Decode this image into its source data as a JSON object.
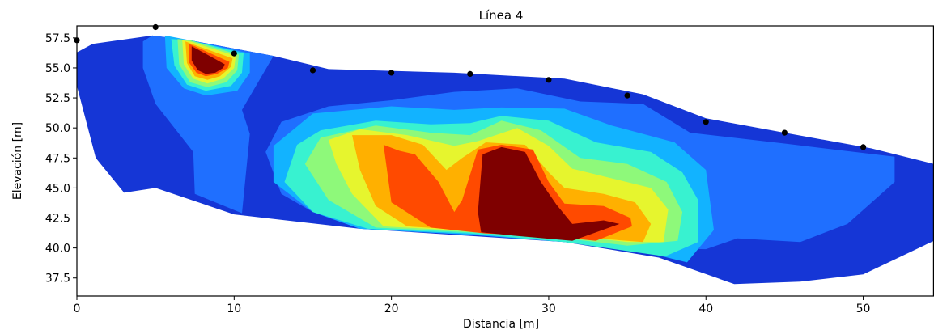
{
  "chart_data": {
    "type": "contour",
    "title": "Línea 4",
    "xlabel": "Distancia [m]",
    "ylabel": "Elevación [m]",
    "xlim": [
      0,
      54.5
    ],
    "ylim": [
      36,
      58.5
    ],
    "xticks": [
      0,
      10,
      20,
      30,
      40,
      50
    ],
    "yticks": [
      37.5,
      40.0,
      42.5,
      45.0,
      47.5,
      50.0,
      52.5,
      55.0,
      57.5
    ],
    "ytick_labels": [
      "37.5",
      "40.0",
      "42.5",
      "45.0",
      "47.5",
      "50.0",
      "52.5",
      "55.0",
      "57.5"
    ],
    "grid": false,
    "colormap": "jet",
    "colors": {
      "level0": "#00008b",
      "level1": "#1536d6",
      "level2": "#1f6fff",
      "level3": "#12b3ff",
      "level4": "#38f2d0",
      "level5": "#8ef97a",
      "level6": "#e6f52e",
      "level7": "#ffb000",
      "level8": "#ff4a00",
      "level9": "#7f0000"
    },
    "electrodes": [
      {
        "x": 0,
        "y": 57.3
      },
      {
        "x": 5,
        "y": 58.4
      },
      {
        "x": 10,
        "y": 56.2
      },
      {
        "x": 15,
        "y": 54.8
      },
      {
        "x": 20,
        "y": 54.6
      },
      {
        "x": 25,
        "y": 54.5
      },
      {
        "x": 30,
        "y": 54.0
      },
      {
        "x": 35,
        "y": 52.7
      },
      {
        "x": 40,
        "y": 50.5
      },
      {
        "x": 45,
        "y": 49.6
      },
      {
        "x": 50,
        "y": 48.4
      }
    ],
    "regions": [
      {
        "level": 1,
        "points": [
          [
            0,
            56.3
          ],
          [
            1,
            57
          ],
          [
            4.8,
            57.7
          ],
          [
            7.2,
            57.3
          ],
          [
            12.5,
            56
          ],
          [
            16,
            54.9
          ],
          [
            24,
            54.6
          ],
          [
            31,
            54.1
          ],
          [
            36,
            52.8
          ],
          [
            40,
            50.8
          ],
          [
            45,
            49.6
          ],
          [
            50.5,
            48.3
          ],
          [
            54.5,
            47
          ],
          [
            54.5,
            40.6
          ],
          [
            50,
            37.8
          ],
          [
            46,
            37.2
          ],
          [
            41.8,
            37
          ],
          [
            37,
            39.2
          ],
          [
            31,
            40.5
          ],
          [
            18,
            41.6
          ],
          [
            10,
            42.8
          ],
          [
            5,
            45
          ],
          [
            3,
            44.6
          ],
          [
            1.2,
            47.5
          ],
          [
            0,
            53.5
          ]
        ]
      },
      {
        "level": 2,
        "points": [
          [
            4.8,
            57.7
          ],
          [
            7.2,
            57.3
          ],
          [
            12.5,
            56
          ],
          [
            10.5,
            51.5
          ],
          [
            11,
            49.5
          ],
          [
            10.5,
            42.9
          ],
          [
            7.5,
            44.5
          ],
          [
            7.4,
            48
          ],
          [
            5,
            52
          ],
          [
            4.2,
            55
          ],
          [
            4.2,
            57.2
          ]
        ]
      },
      {
        "level": 2,
        "points": [
          [
            20,
            52.3
          ],
          [
            24,
            53
          ],
          [
            28,
            53.3
          ],
          [
            32,
            52.2
          ],
          [
            36,
            52
          ],
          [
            39,
            49.6
          ],
          [
            45,
            48.7
          ],
          [
            52,
            47.6
          ],
          [
            52,
            45.5
          ],
          [
            49,
            42
          ],
          [
            46,
            40.5
          ],
          [
            42,
            40.8
          ],
          [
            40,
            39.9
          ],
          [
            36,
            40
          ],
          [
            25,
            41.1
          ],
          [
            18,
            41.6
          ],
          [
            15,
            43
          ],
          [
            13,
            44.5
          ],
          [
            12,
            48
          ],
          [
            13,
            50.5
          ],
          [
            16,
            51.8
          ]
        ]
      },
      {
        "level": 3,
        "points": [
          [
            5.6,
            57.7
          ],
          [
            7.2,
            57.3
          ],
          [
            11,
            56.2
          ],
          [
            11,
            54.6
          ],
          [
            10.2,
            53.1
          ],
          [
            8.2,
            52.7
          ],
          [
            6.8,
            53.3
          ],
          [
            5.7,
            55
          ]
        ]
      },
      {
        "level": 3,
        "points": [
          [
            15,
            51.2
          ],
          [
            20,
            51.8
          ],
          [
            24,
            51.5
          ],
          [
            27,
            51.7
          ],
          [
            31,
            51.6
          ],
          [
            34,
            50.2
          ],
          [
            38,
            48.8
          ],
          [
            40,
            46.5
          ],
          [
            40.5,
            41.5
          ],
          [
            38.8,
            38.8
          ],
          [
            36,
            39.7
          ],
          [
            31,
            40.5
          ],
          [
            25,
            41.1
          ],
          [
            18,
            41.6
          ],
          [
            15,
            43
          ],
          [
            12.5,
            45.5
          ],
          [
            12.5,
            48.5
          ]
        ]
      },
      {
        "level": 4,
        "points": [
          [
            6,
            57.4
          ],
          [
            7.2,
            57.3
          ],
          [
            10.6,
            56.2
          ],
          [
            10.5,
            54.6
          ],
          [
            9.8,
            53.5
          ],
          [
            8.2,
            53.1
          ],
          [
            7,
            53.6
          ],
          [
            6.2,
            55.2
          ]
        ]
      },
      {
        "level": 4,
        "points": [
          [
            15.5,
            49.8
          ],
          [
            19,
            50.6
          ],
          [
            22.5,
            50.3
          ],
          [
            25,
            50.4
          ],
          [
            27,
            51
          ],
          [
            30,
            50.6
          ],
          [
            33,
            48.8
          ],
          [
            36.5,
            48
          ],
          [
            38.5,
            46.3
          ],
          [
            39.5,
            44
          ],
          [
            39.5,
            40.5
          ],
          [
            37.4,
            39.3
          ],
          [
            31,
            40.5
          ],
          [
            25,
            41.2
          ],
          [
            18.5,
            41.6
          ],
          [
            15,
            43
          ],
          [
            13.2,
            45.5
          ],
          [
            14,
            48.6
          ]
        ]
      },
      {
        "level": 5,
        "points": [
          [
            6.4,
            57.4
          ],
          [
            7.2,
            57.3
          ],
          [
            10.3,
            56.1
          ],
          [
            10.2,
            54.8
          ],
          [
            9.5,
            53.8
          ],
          [
            8.3,
            53.4
          ],
          [
            7.2,
            53.8
          ],
          [
            6.5,
            55.3
          ]
        ]
      },
      {
        "level": 5,
        "points": [
          [
            15.5,
            49.2
          ],
          [
            19,
            50.2
          ],
          [
            22.5,
            49.6
          ],
          [
            25,
            49.4
          ],
          [
            27,
            50.6
          ],
          [
            29.5,
            49.8
          ],
          [
            32,
            47.5
          ],
          [
            35,
            47
          ],
          [
            37.5,
            45.5
          ],
          [
            38.5,
            43
          ],
          [
            38.2,
            40.6
          ],
          [
            35,
            40.2
          ],
          [
            31,
            40.8
          ],
          [
            25,
            41.3
          ],
          [
            19,
            41.7
          ],
          [
            16,
            44
          ],
          [
            14.5,
            47
          ]
        ]
      },
      {
        "level": 6,
        "points": [
          [
            6.7,
            57.3
          ],
          [
            7.2,
            57.2
          ],
          [
            10.1,
            56
          ],
          [
            10,
            55
          ],
          [
            9.3,
            54.1
          ],
          [
            8.3,
            53.7
          ],
          [
            7.4,
            54.1
          ],
          [
            6.8,
            55.3
          ]
        ]
      },
      {
        "level": 6,
        "points": [
          [
            16,
            49
          ],
          [
            18,
            49.9
          ],
          [
            21,
            49.4
          ],
          [
            24,
            48.5
          ],
          [
            25.5,
            48.9
          ],
          [
            28,
            50
          ],
          [
            30,
            48.5
          ],
          [
            31.5,
            46.6
          ],
          [
            34,
            45.8
          ],
          [
            36.5,
            45
          ],
          [
            37.6,
            43.2
          ],
          [
            37.3,
            40.5
          ],
          [
            35,
            40.5
          ],
          [
            31,
            41.1
          ],
          [
            25,
            41.4
          ],
          [
            19.5,
            41.8
          ],
          [
            17.5,
            44.5
          ],
          [
            16.5,
            47
          ]
        ]
      },
      {
        "level": 7,
        "points": [
          [
            6.9,
            57.2
          ],
          [
            7.3,
            57
          ],
          [
            9.9,
            55.8
          ],
          [
            9.8,
            55.1
          ],
          [
            9.1,
            54.3
          ],
          [
            8.3,
            54
          ],
          [
            7.5,
            54.3
          ],
          [
            7,
            55.4
          ]
        ]
      },
      {
        "level": 7,
        "points": [
          [
            17.5,
            49.4
          ],
          [
            20,
            49.4
          ],
          [
            22,
            48.6
          ],
          [
            23.5,
            46.5
          ],
          [
            24.5,
            47.5
          ],
          [
            26,
            48.8
          ],
          [
            28.5,
            48.6
          ],
          [
            30,
            46.3
          ],
          [
            31,
            45
          ],
          [
            33.5,
            44.5
          ],
          [
            35.5,
            43.8
          ],
          [
            36.5,
            42
          ],
          [
            36,
            40.5
          ],
          [
            31,
            41
          ],
          [
            26,
            41.4
          ],
          [
            21,
            41.8
          ],
          [
            19,
            43.5
          ],
          [
            18,
            46.5
          ]
        ]
      },
      {
        "level": 8,
        "points": [
          [
            7.1,
            57
          ],
          [
            7.5,
            56.8
          ],
          [
            9.7,
            55.5
          ],
          [
            9.6,
            55
          ],
          [
            8.9,
            54.5
          ],
          [
            8.2,
            54.3
          ],
          [
            7.6,
            54.6
          ],
          [
            7.1,
            55.5
          ]
        ]
      },
      {
        "level": 8,
        "points": [
          [
            19.5,
            48.6
          ],
          [
            20.5,
            48.1
          ],
          [
            21.5,
            47.8
          ],
          [
            23,
            45.5
          ],
          [
            24,
            43
          ],
          [
            24.5,
            44
          ],
          [
            25.5,
            48.2
          ],
          [
            27,
            48.6
          ],
          [
            29,
            48.2
          ],
          [
            30,
            45.5
          ],
          [
            31,
            43.7
          ],
          [
            33.5,
            43.5
          ],
          [
            35.2,
            42.5
          ],
          [
            35.3,
            41.8
          ],
          [
            33,
            40.6
          ],
          [
            30,
            41
          ],
          [
            26,
            41.2
          ],
          [
            22.5,
            41.7
          ],
          [
            20,
            43.8
          ]
        ]
      },
      {
        "level": 9,
        "points": [
          [
            7.3,
            56.8
          ],
          [
            7.6,
            56.6
          ],
          [
            9.4,
            55.3
          ],
          [
            9.3,
            55
          ],
          [
            8.8,
            54.6
          ],
          [
            8.2,
            54.5
          ],
          [
            7.7,
            54.8
          ],
          [
            7.3,
            55.6
          ]
        ]
      },
      {
        "level": 9,
        "points": [
          [
            25.8,
            47.8
          ],
          [
            27,
            48.4
          ],
          [
            28.5,
            48
          ],
          [
            29.5,
            45.5
          ],
          [
            30.5,
            43.6
          ],
          [
            31.5,
            42
          ],
          [
            33.5,
            42.3
          ],
          [
            34.5,
            42
          ],
          [
            31.5,
            40.6
          ],
          [
            28,
            41
          ],
          [
            25.7,
            41.3
          ],
          [
            25.5,
            43
          ]
        ]
      }
    ]
  }
}
